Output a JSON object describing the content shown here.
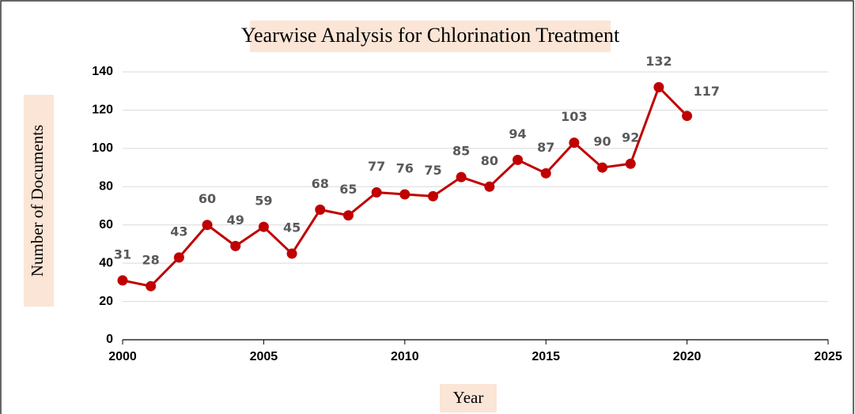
{
  "chart_data": {
    "type": "line",
    "title": "Yearwise Analysis for Chlorination Treatment",
    "xlabel": "Year",
    "ylabel": "Number of  Documents",
    "x": [
      2000,
      2001,
      2002,
      2003,
      2004,
      2005,
      2006,
      2007,
      2008,
      2009,
      2010,
      2011,
      2012,
      2013,
      2014,
      2015,
      2016,
      2017,
      2018,
      2019,
      2020
    ],
    "series": [
      {
        "name": "Number of  Documents",
        "color": "#c00000",
        "values": [
          31,
          28,
          43,
          60,
          49,
          59,
          45,
          68,
          65,
          77,
          76,
          75,
          85,
          80,
          94,
          87,
          103,
          90,
          92,
          132,
          117
        ]
      }
    ],
    "xlim": [
      2000,
      2025
    ],
    "xticks": [
      2000,
      2005,
      2010,
      2015,
      2020,
      2025
    ],
    "ylim": [
      0,
      140
    ],
    "yticks": [
      0,
      20,
      40,
      60,
      80,
      100,
      120,
      140
    ],
    "grid": true
  }
}
